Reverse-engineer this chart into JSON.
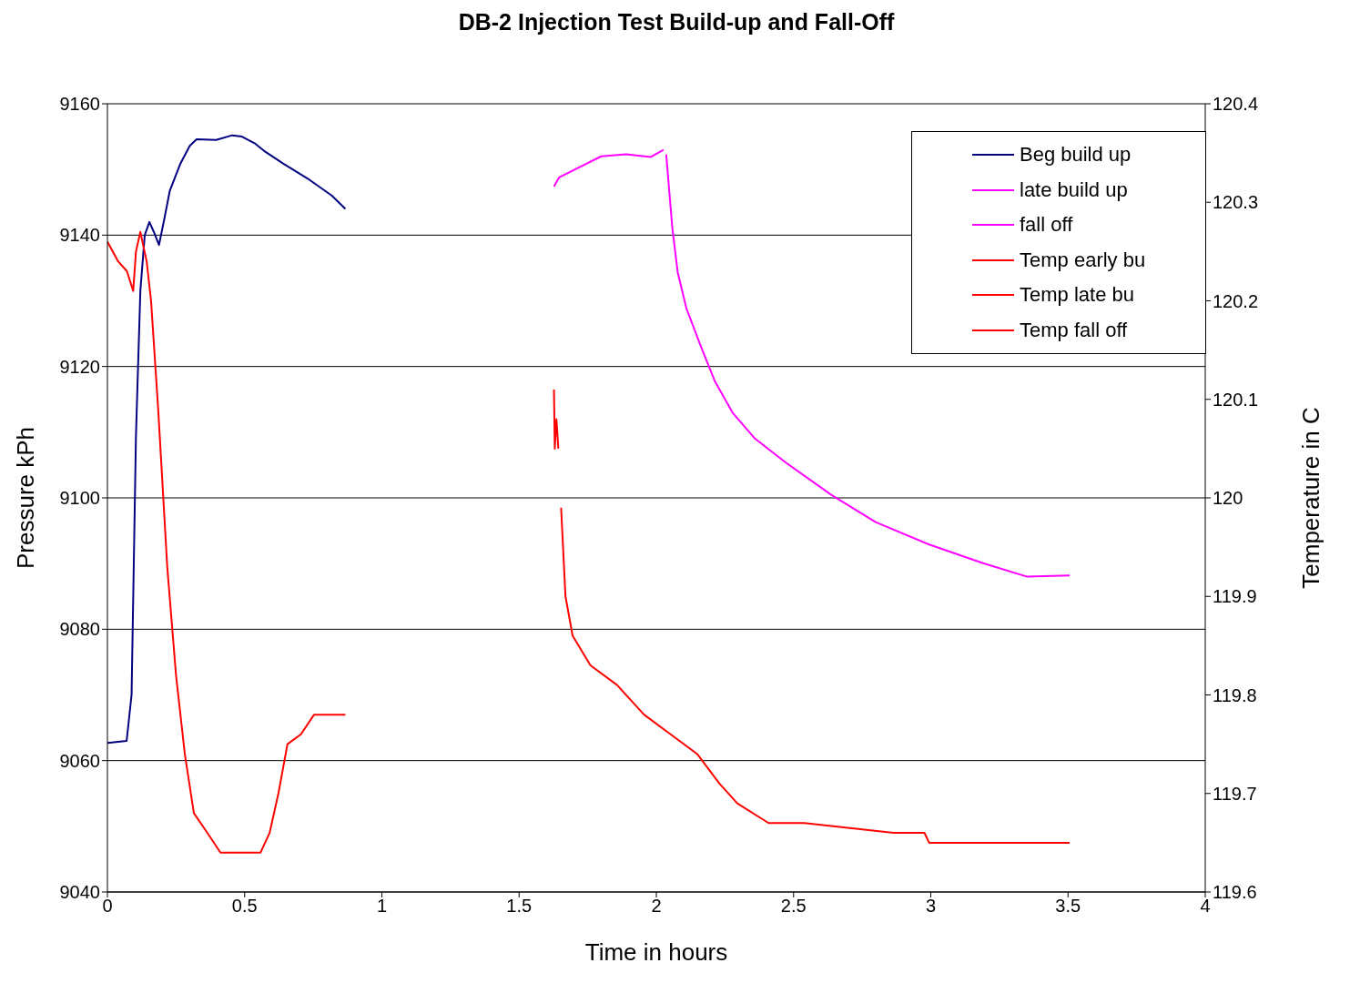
{
  "chart_data": {
    "type": "line",
    "title": "DB-2 Injection Test Build-up and Fall-Off",
    "xlabel": "Time in hours",
    "ylabel": "Pressure kPh",
    "y2label": "Temperature in C",
    "xlim": [
      0,
      4
    ],
    "xticks": [
      0,
      0.5,
      1,
      1.5,
      2,
      2.5,
      3,
      3.5,
      4
    ],
    "ylim": [
      9040,
      9160
    ],
    "yticks": [
      9040,
      9060,
      9080,
      9100,
      9120,
      9140,
      9160
    ],
    "y2lim": [
      119.6,
      120.4
    ],
    "y2ticks": [
      119.6,
      119.7,
      119.8,
      119.9,
      120,
      120.1,
      120.2,
      120.3,
      120.4
    ],
    "grid": "y",
    "legend": "top right",
    "marker": "none",
    "line_style": "solid",
    "series": [
      {
        "name": "Beg build up",
        "color": "#000080",
        "x": [
          0,
          0.07,
          0.088,
          0.104,
          0.12,
          0.136,
          0.153,
          0.169,
          0.188,
          0.208,
          0.227,
          0.266,
          0.3,
          0.325,
          0.396,
          0.455,
          0.49,
          0.536,
          0.575,
          0.64,
          0.737,
          0.818,
          0.867
        ],
        "values": [
          9062.7,
          9063,
          9070,
          9109.5,
          9131.5,
          9140,
          9142,
          9140.5,
          9138.5,
          9142.6,
          9146.7,
          9150.9,
          9153.6,
          9154.6,
          9154.5,
          9155.2,
          9155,
          9154,
          9152.7,
          9150.9,
          9148.4,
          9146,
          9144
        ]
      },
      {
        "name": "late build up",
        "color": "#ff00ff",
        "x": [
          1.627,
          1.646,
          1.727,
          1.799,
          1.89,
          1.98,
          2.026
        ],
        "values": [
          9147.4,
          9148.8,
          9150.5,
          9152,
          9152.3,
          9151.9,
          9153
        ]
      },
      {
        "name": "fall off",
        "color": "#ff00ff",
        "x": [
          2.036,
          2.058,
          2.078,
          2.11,
          2.16,
          2.214,
          2.279,
          2.36,
          2.474,
          2.636,
          2.799,
          2.994,
          3.188,
          3.351,
          3.506
        ],
        "values": [
          9152.3,
          9141.2,
          9134.3,
          9128.8,
          9123.3,
          9117.7,
          9112.9,
          9109,
          9105.3,
          9100.5,
          9096.3,
          9092.9,
          9090.1,
          9088,
          9088.2
        ]
      },
      {
        "name": "Temp early bu",
        "color": "#ff0000",
        "axis": "y2",
        "x": [
          0,
          0.039,
          0.071,
          0.094,
          0.104,
          0.12,
          0.143,
          0.159,
          0.185,
          0.218,
          0.25,
          0.282,
          0.315,
          0.364,
          0.412,
          0.461,
          0.558,
          0.591,
          0.623,
          0.656,
          0.705,
          0.753,
          0.867
        ],
        "values": [
          120.26,
          120.24,
          120.23,
          120.21,
          120.25,
          120.27,
          120.24,
          120.2,
          120.09,
          119.93,
          119.82,
          119.74,
          119.68,
          119.66,
          119.64,
          119.64,
          119.64,
          119.66,
          119.7,
          119.75,
          119.76,
          119.78,
          119.78
        ]
      },
      {
        "name": "Temp late bu",
        "color": "#ff0000",
        "axis": "y2",
        "x": [
          1.627,
          1.63,
          1.636,
          1.643
        ],
        "values": [
          120.11,
          120.05,
          120.08,
          120.05
        ]
      },
      {
        "name": "Temp fall off",
        "color": "#ff0000",
        "axis": "y2",
        "x": [
          1.653,
          1.669,
          1.695,
          1.76,
          1.857,
          1.955,
          2.052,
          2.149,
          2.23,
          2.295,
          2.409,
          2.539,
          2.864,
          2.977,
          2.994,
          3.506
        ],
        "values": [
          119.99,
          119.9,
          119.86,
          119.83,
          119.81,
          119.78,
          119.76,
          119.74,
          119.71,
          119.69,
          119.67,
          119.67,
          119.66,
          119.66,
          119.65,
          119.65
        ]
      }
    ]
  }
}
